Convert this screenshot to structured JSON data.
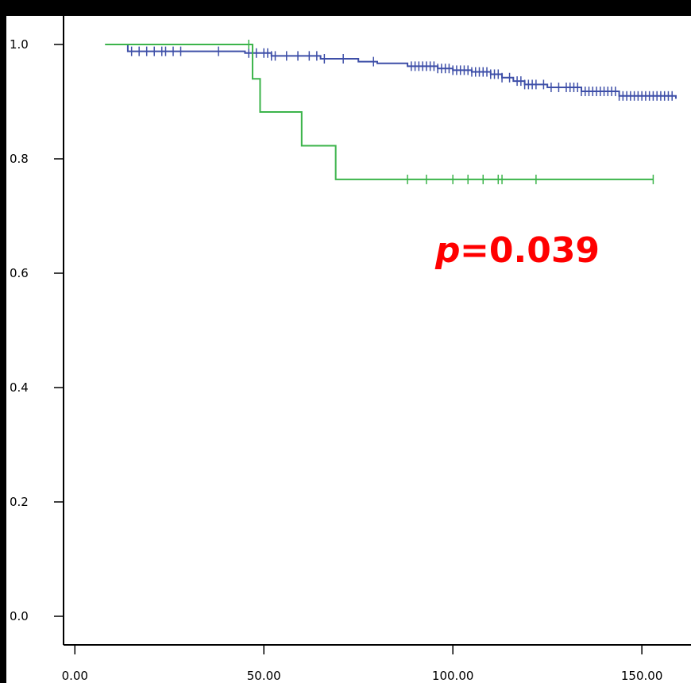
{
  "chart_data": {
    "type": "line",
    "subtype": "kaplan-meier survival curve",
    "title": "",
    "xlabel": "",
    "ylabel": "",
    "xlim": [
      -3,
      163
    ],
    "ylim": [
      -0.05,
      1.05
    ],
    "x_ticks": [
      0,
      50,
      100,
      150
    ],
    "x_tick_labels": [
      "0.00",
      "50.00",
      "100.00",
      "150.00"
    ],
    "y_ticks": [
      0.0,
      0.2,
      0.4,
      0.6,
      0.8,
      1.0
    ],
    "y_tick_labels": [
      "0.0",
      "0.2",
      "0.4",
      "0.6",
      "0.8",
      "1.0"
    ],
    "grid": false,
    "legend": "none",
    "series": [
      {
        "color": "#3e4fa8",
        "steps": [
          [
            8,
            1.0
          ],
          [
            14,
            0.988
          ],
          [
            45,
            0.985
          ],
          [
            52,
            0.98
          ],
          [
            65,
            0.975
          ],
          [
            75,
            0.97
          ],
          [
            80,
            0.967
          ],
          [
            88,
            0.962
          ],
          [
            96,
            0.958
          ],
          [
            100,
            0.955
          ],
          [
            105,
            0.952
          ],
          [
            110,
            0.948
          ],
          [
            113,
            0.942
          ],
          [
            116,
            0.936
          ],
          [
            119,
            0.93
          ],
          [
            125,
            0.925
          ],
          [
            134,
            0.918
          ],
          [
            144,
            0.91
          ],
          [
            159,
            0.905
          ]
        ],
        "censor_times": [
          15,
          17,
          19,
          21,
          23,
          24,
          26,
          28,
          38,
          46,
          48,
          50,
          51,
          52,
          53,
          56,
          59,
          62,
          64,
          66,
          71,
          79,
          89,
          90,
          91,
          92,
          93,
          94,
          95,
          96,
          97,
          98,
          99,
          100,
          101,
          102,
          103,
          104,
          105,
          106,
          107,
          108,
          109,
          110,
          111,
          112,
          113,
          115,
          117,
          118,
          119,
          120,
          121,
          122,
          124,
          126,
          128,
          130,
          131,
          132,
          133,
          134,
          135,
          136,
          137,
          138,
          139,
          140,
          141,
          142,
          143,
          144,
          145,
          146,
          147,
          148,
          149,
          150,
          151,
          152,
          153,
          154,
          155,
          156,
          157,
          158
        ]
      },
      {
        "color": "#3cb44b",
        "steps": [
          [
            8,
            1.0
          ],
          [
            47,
            0.94
          ],
          [
            49,
            0.882
          ],
          [
            60,
            0.823
          ],
          [
            69,
            0.764
          ],
          [
            153,
            0.764
          ]
        ],
        "censor_times": [
          46,
          88,
          93,
          100,
          104,
          108,
          112,
          113,
          122,
          153
        ]
      }
    ],
    "annotations": [
      {
        "text_p": "p",
        "text_value": "=0.039",
        "color": "#ff0000"
      }
    ]
  }
}
